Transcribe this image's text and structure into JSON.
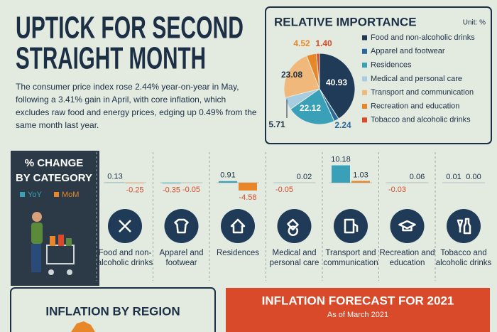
{
  "header": {
    "title_lines": [
      "UPTICK FOR SECOND",
      "STRAIGHT MONTH"
    ],
    "description": "The consumer price index rose 2.44% year-on-year in May, following a 3.41% gain in April, with core inflation, which excludes raw food and energy prices, edging up 0.49% from the same month last year."
  },
  "chart_data": [
    {
      "type": "pie",
      "title": "RELATIVE IMPORTANCE",
      "unit": "Unit: %",
      "categories": [
        "Food and non-alcoholic drinks",
        "Apparel and footwear",
        "Residences",
        "Medical and personal care",
        "Transport and communication",
        "Recreation and education",
        "Tobacco and alcoholic drinks"
      ],
      "values": [
        40.93,
        2.24,
        22.12,
        5.71,
        23.08,
        4.52,
        1.4
      ],
      "value_labels": [
        "40.93",
        "2.24",
        "22.12",
        "5.71",
        "23.08",
        "4.52",
        "1.40"
      ],
      "colors": [
        "#1f3b57",
        "#2a6a9a",
        "#3aa0b8",
        "#a9cde0",
        "#f0b87a",
        "#e8872a",
        "#d94a2a"
      ]
    },
    {
      "type": "bar",
      "title_lines": [
        "% CHANGE",
        "BY CATEGORY"
      ],
      "categories": [
        "Food and non-alcoholic drinks",
        "Apparel and footwear",
        "Residences",
        "Medical and personal care",
        "Transport and communication",
        "Recreation and education",
        "Tobacco and alcoholic drinks"
      ],
      "series": [
        {
          "name": "YoY",
          "color": "#3aa0b8",
          "values": [
            0.13,
            -0.35,
            0.91,
            -0.05,
            10.18,
            -0.03,
            0.01
          ]
        },
        {
          "name": "MoM",
          "color": "#e8872a",
          "values": [
            -0.25,
            -0.05,
            -4.58,
            0.02,
            1.03,
            0.06,
            0
          ],
          "value_labels": [
            "-0.25",
            "-0.05",
            "-4.58",
            "0.02",
            "1.03",
            "0.06",
            "0.00"
          ]
        }
      ]
    }
  ],
  "region_panel": {
    "title": "INFLATION BY REGION"
  },
  "forecast": {
    "title": "INFLATION FORECAST FOR 2021",
    "subtitle": "As of March 2021"
  }
}
